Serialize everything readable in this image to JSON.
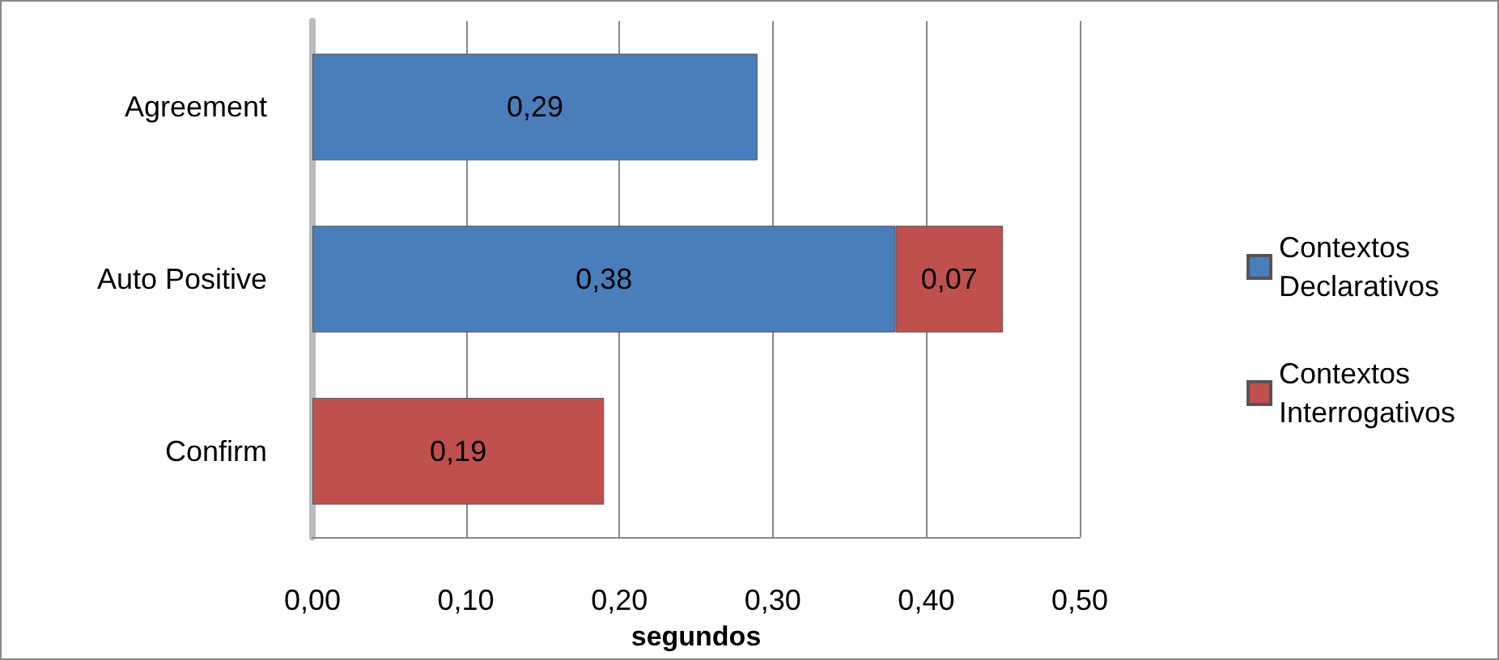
{
  "chart_data": {
    "type": "bar",
    "orientation": "horizontal",
    "stacked": true,
    "xlabel": "segundos",
    "categories": [
      "Agreement",
      "Auto Positive",
      "Confirm"
    ],
    "series": [
      {
        "name": "Contextos Declarativos",
        "color": "#4a7ebb",
        "values": [
          0.29,
          0.38,
          null
        ],
        "value_labels": [
          "0,29",
          "0,38",
          null
        ]
      },
      {
        "name": "Contextos Interrogativos",
        "color": "#c0504d",
        "values": [
          null,
          0.07,
          0.19
        ],
        "value_labels": [
          null,
          "0,07",
          "0,19"
        ]
      }
    ],
    "xlim": [
      0,
      0.5
    ],
    "xticks": [
      {
        "value": 0,
        "label": "0,00"
      },
      {
        "value": 0.1,
        "label": "0,10"
      },
      {
        "value": 0.2,
        "label": "0,20"
      },
      {
        "value": 0.3,
        "label": "0,30"
      },
      {
        "value": 0.4,
        "label": "0,40"
      },
      {
        "value": 0.5,
        "label": "0,50"
      }
    ],
    "grid": "x",
    "legend": "right"
  }
}
